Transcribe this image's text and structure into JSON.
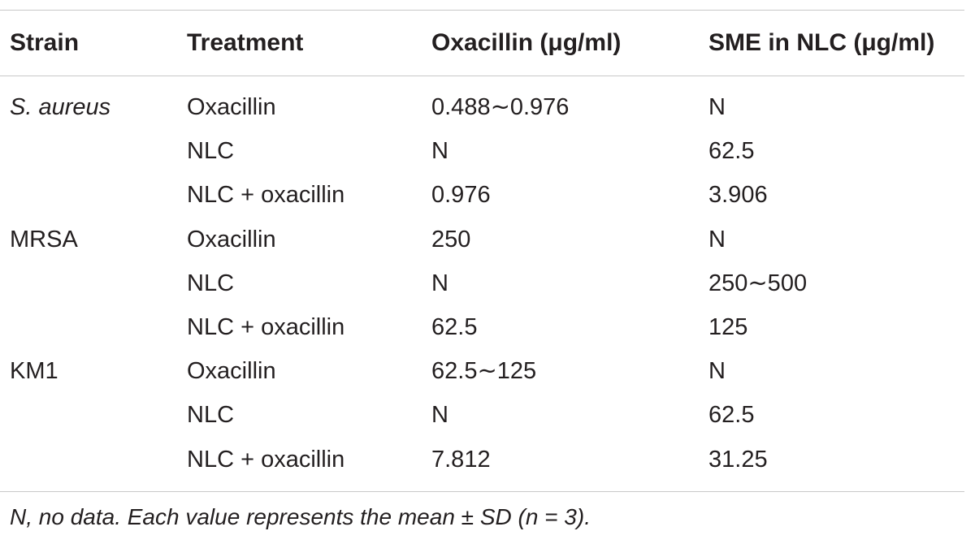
{
  "table": {
    "headers": [
      "Strain",
      "Treatment",
      "Oxacillin (μg/ml)",
      "SME in NLC (μg/ml)"
    ],
    "rows": [
      {
        "strain": "S. aureus",
        "treatment": "Oxacillin",
        "oxacillin": "0.488∼0.976",
        "sme": "N"
      },
      {
        "strain": "",
        "treatment": "NLC",
        "oxacillin": "N",
        "sme": "62.5"
      },
      {
        "strain": "",
        "treatment": "NLC + oxacillin",
        "oxacillin": "0.976",
        "sme": "3.906"
      },
      {
        "strain": "MRSA",
        "treatment": "Oxacillin",
        "oxacillin": "250",
        "sme": "N"
      },
      {
        "strain": "",
        "treatment": "NLC",
        "oxacillin": "N",
        "sme": "250∼500"
      },
      {
        "strain": "",
        "treatment": "NLC + oxacillin",
        "oxacillin": "62.5",
        "sme": "125"
      },
      {
        "strain": "KM1",
        "treatment": "Oxacillin",
        "oxacillin": "62.5∼125",
        "sme": "N"
      },
      {
        "strain": "",
        "treatment": "NLC",
        "oxacillin": "N",
        "sme": "62.5"
      },
      {
        "strain": "",
        "treatment": "NLC + oxacillin",
        "oxacillin": "7.812",
        "sme": "31.25"
      }
    ],
    "footnote": "N, no data. Each value represents the mean ± SD (n = 3)."
  }
}
